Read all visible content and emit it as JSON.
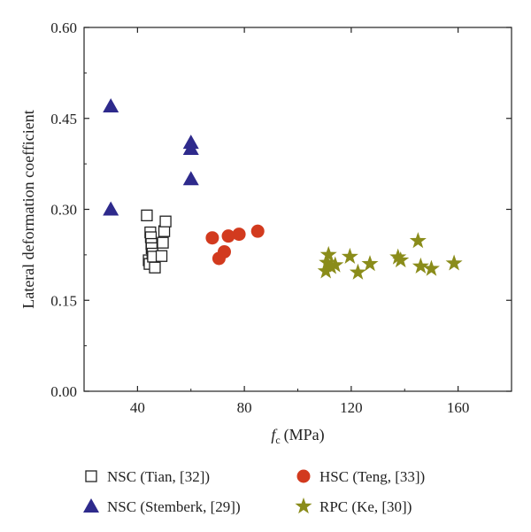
{
  "chart_data": {
    "type": "scatter",
    "xlabel": "f",
    "xlabel_sub": "c",
    "xlabel_unit": "(MPa)",
    "ylabel": "Lateral deformation coefficient",
    "xlim": [
      20,
      180
    ],
    "ylim": [
      0,
      0.6
    ],
    "xticks": [
      "40",
      "80",
      "120",
      "160"
    ],
    "yticks": [
      "0.00",
      "0.15",
      "0.30",
      "0.45",
      "0.60"
    ],
    "legend_position": "bottom",
    "series": [
      {
        "name": "NSC (Tian, [32])",
        "marker": "open-square",
        "color": "#222222",
        "points": [
          [
            43.5,
            0.29
          ],
          [
            44.2,
            0.216
          ],
          [
            44.5,
            0.21
          ],
          [
            44.8,
            0.262
          ],
          [
            45.0,
            0.254
          ],
          [
            45.2,
            0.243
          ],
          [
            45.3,
            0.236
          ],
          [
            45.6,
            0.227
          ],
          [
            45.8,
            0.222
          ],
          [
            46.5,
            0.204
          ],
          [
            49.0,
            0.223
          ],
          [
            49.5,
            0.245
          ],
          [
            50.0,
            0.264
          ],
          [
            50.5,
            0.28
          ]
        ]
      },
      {
        "name": "NSC (Stemberk, [29])",
        "marker": "filled-triangle",
        "color": "#2e2a8c",
        "points": [
          [
            30,
            0.47
          ],
          [
            30,
            0.3
          ],
          [
            60,
            0.41
          ],
          [
            60,
            0.4
          ],
          [
            60,
            0.35
          ]
        ]
      },
      {
        "name": "HSC (Teng, [33])",
        "marker": "filled-circle",
        "color": "#d23a1e",
        "points": [
          [
            68,
            0.253
          ],
          [
            70.5,
            0.219
          ],
          [
            72.5,
            0.23
          ],
          [
            74,
            0.256
          ],
          [
            78,
            0.259
          ],
          [
            85,
            0.264
          ]
        ]
      },
      {
        "name": "RPC (Ke, [30])",
        "marker": "filled-star",
        "color": "#8a8c1a",
        "points": [
          [
            110.5,
            0.198
          ],
          [
            111,
            0.212
          ],
          [
            111.5,
            0.225
          ],
          [
            112.5,
            0.205
          ],
          [
            114,
            0.208
          ],
          [
            119.5,
            0.222
          ],
          [
            122.5,
            0.196
          ],
          [
            127,
            0.21
          ],
          [
            137.5,
            0.221
          ],
          [
            138.5,
            0.216
          ],
          [
            145,
            0.248
          ],
          [
            146,
            0.206
          ],
          [
            150,
            0.202
          ],
          [
            158.5,
            0.211
          ]
        ]
      }
    ]
  }
}
